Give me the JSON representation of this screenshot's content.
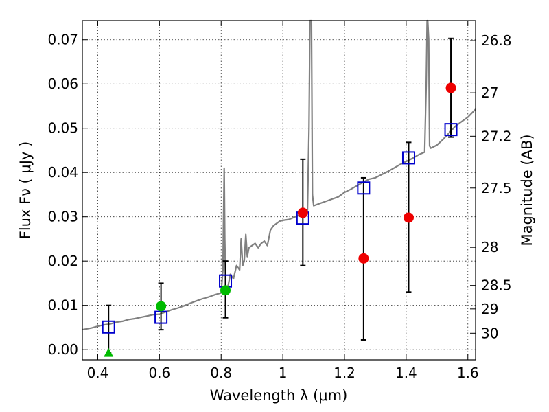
{
  "chart_data": {
    "type": "scatter",
    "title": "",
    "xlabel": "Wavelength  λ (μm)",
    "ylabel": "Flux  Fν  ( μJy )",
    "ylabel_right": "Magnitude (AB)",
    "xlim": [
      0.35,
      1.625
    ],
    "ylim": [
      -0.0023,
      0.0743
    ],
    "grid": true,
    "x_ticks": [
      0.4,
      0.6,
      0.8,
      1.0,
      1.2,
      1.4,
      1.6
    ],
    "x_tick_labels": [
      "0.4",
      "0.6",
      "0.8",
      "1",
      "1.2",
      "1.4",
      "1.6"
    ],
    "y_ticks": [
      0.0,
      0.01,
      0.02,
      0.03,
      0.04,
      0.05,
      0.06,
      0.07
    ],
    "y_tick_labels": [
      "0.00",
      "0.01",
      "0.02",
      "0.03",
      "0.04",
      "0.05",
      "0.06",
      "0.07"
    ],
    "right_ticks": [
      {
        "label": "26.8",
        "flux": 0.0698
      },
      {
        "label": "27",
        "flux": 0.058
      },
      {
        "label": "27.2",
        "flux": 0.0482
      },
      {
        "label": "27.5",
        "flux": 0.0365
      },
      {
        "label": "28",
        "flux": 0.0231
      },
      {
        "label": "28.5",
        "flux": 0.0145
      },
      {
        "label": "29",
        "flux": 0.0092
      },
      {
        "label": "30",
        "flux": 0.0037
      }
    ],
    "colors": {
      "model": "#808080",
      "model_phot": "#0000cc",
      "obs_green": "#00bb00",
      "obs_red": "#ee0000",
      "errorbar": "#000000"
    },
    "series": [
      {
        "name": "SED model",
        "kind": "line",
        "x": [
          0.35,
          0.38,
          0.4,
          0.42,
          0.44,
          0.46,
          0.48,
          0.5,
          0.52,
          0.54,
          0.56,
          0.58,
          0.6,
          0.62,
          0.64,
          0.66,
          0.68,
          0.7,
          0.72,
          0.74,
          0.76,
          0.78,
          0.8,
          0.806,
          0.808,
          0.81,
          0.812,
          0.815,
          0.82,
          0.83,
          0.84,
          0.85,
          0.86,
          0.865,
          0.87,
          0.875,
          0.88,
          0.885,
          0.89,
          0.9,
          0.91,
          0.92,
          0.93,
          0.94,
          0.95,
          0.96,
          0.97,
          0.98,
          0.99,
          1.0,
          1.02,
          1.04,
          1.06,
          1.07,
          1.08,
          1.085,
          1.088,
          1.09,
          1.093,
          1.096,
          1.1,
          1.12,
          1.14,
          1.16,
          1.18,
          1.2,
          1.22,
          1.24,
          1.26,
          1.28,
          1.3,
          1.32,
          1.34,
          1.36,
          1.38,
          1.4,
          1.42,
          1.44,
          1.46,
          1.465,
          1.468,
          1.47,
          1.473,
          1.476,
          1.48,
          1.5,
          1.52,
          1.54,
          1.56,
          1.58,
          1.6,
          1.625
        ],
        "y": [
          0.0045,
          0.0049,
          0.0053,
          0.0056,
          0.0058,
          0.0062,
          0.0064,
          0.0068,
          0.007,
          0.0073,
          0.0076,
          0.0079,
          0.008,
          0.0085,
          0.009,
          0.0094,
          0.0099,
          0.0105,
          0.011,
          0.0115,
          0.0119,
          0.0124,
          0.0128,
          0.018,
          0.03,
          0.041,
          0.025,
          0.014,
          0.0135,
          0.017,
          0.016,
          0.019,
          0.018,
          0.025,
          0.019,
          0.02,
          0.026,
          0.021,
          0.023,
          0.0235,
          0.024,
          0.023,
          0.024,
          0.0245,
          0.0235,
          0.027,
          0.028,
          0.0285,
          0.029,
          0.0292,
          0.0294,
          0.03,
          0.0305,
          0.031,
          0.0315,
          0.05,
          0.0743,
          0.0743,
          0.0743,
          0.035,
          0.0325,
          0.033,
          0.0335,
          0.034,
          0.0345,
          0.0355,
          0.0362,
          0.037,
          0.0378,
          0.0385,
          0.0388,
          0.0395,
          0.0402,
          0.041,
          0.0418,
          0.0425,
          0.0432,
          0.044,
          0.0446,
          0.06,
          0.0743,
          0.0743,
          0.07,
          0.046,
          0.0455,
          0.0462,
          0.0475,
          0.049,
          0.0505,
          0.0515,
          0.0525,
          0.0543
        ]
      },
      {
        "name": "Model photometry",
        "kind": "open-square",
        "x": [
          0.435,
          0.605,
          0.814,
          1.065,
          1.262,
          1.408,
          1.545
        ],
        "y": [
          0.0051,
          0.0073,
          0.0155,
          0.0297,
          0.0365,
          0.0433,
          0.0497
        ]
      },
      {
        "name": "Observed (green)",
        "kind": "circle",
        "x": [
          0.605,
          0.814
        ],
        "y": [
          0.0098,
          0.0134
        ],
        "yerr_low": [
          0.0045,
          0.0072
        ],
        "yerr_high": [
          0.015,
          0.02
        ]
      },
      {
        "name": "Observed (red)",
        "kind": "circle",
        "x": [
          1.065,
          1.262,
          1.408,
          1.545
        ],
        "y": [
          0.0309,
          0.0206,
          0.0298,
          0.0591
        ],
        "yerr_low": [
          0.019,
          0.0022,
          0.013,
          0.048
        ],
        "yerr_high": [
          0.043,
          0.0388,
          0.0468,
          0.0703
        ]
      },
      {
        "name": "Upper limit (green)",
        "kind": "triangle",
        "x": [
          0.435
        ],
        "y": [
          -0.0007
        ],
        "yerr_low": [
          -0.0007
        ],
        "yerr_high": [
          0.01
        ]
      }
    ]
  }
}
